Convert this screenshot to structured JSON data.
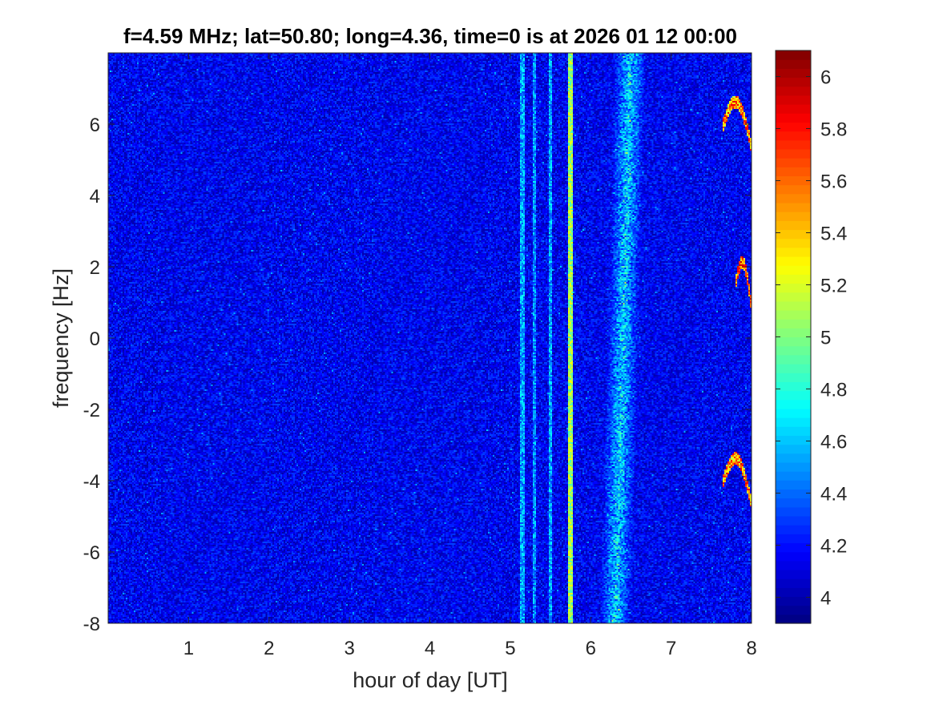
{
  "chart_data": {
    "type": "heatmap",
    "title": "f=4.59 MHz;  lat=50.80; long=4.36, time=0 is at 2026 01 12 00:00",
    "xlabel": "hour of day [UT]",
    "ylabel": "frequency [Hz]",
    "xlim": [
      0,
      8
    ],
    "ylim": [
      -8,
      8
    ],
    "xticks": [
      1,
      2,
      3,
      4,
      5,
      6,
      7,
      8
    ],
    "xtick_labels": [
      "1",
      "2",
      "3",
      "4",
      "5",
      "6",
      "7",
      "8"
    ],
    "yticks": [
      -8,
      -6,
      -4,
      -2,
      0,
      2,
      4,
      6
    ],
    "ytick_labels": [
      "-8",
      "-6",
      "-4",
      "-2",
      "0",
      "2",
      "4",
      "6"
    ],
    "colorbar": {
      "colormap": "jet",
      "clim": [
        3.9,
        6.1
      ],
      "ticks": [
        4,
        4.2,
        4.4,
        4.6,
        4.8,
        5,
        5.2,
        5.4,
        5.6,
        5.8,
        6
      ],
      "tick_labels": [
        "4",
        "4.2",
        "4.4",
        "4.6",
        "4.8",
        "5",
        "5.2",
        "5.4",
        "5.6",
        "5.8",
        "6"
      ]
    },
    "background_level": 4.15,
    "features": {
      "vertical_lines": [
        {
          "hour": 5.15,
          "level": 4.55
        },
        {
          "hour": 5.3,
          "level": 4.5
        },
        {
          "hour": 5.5,
          "level": 4.55
        },
        {
          "hour": 5.75,
          "level": 5.1
        }
      ],
      "wide_band": {
        "hour_start": 6.2,
        "hour_end": 6.6,
        "level": 4.7
      },
      "echo_traces": [
        {
          "hour_start": 7.65,
          "hour_end": 8.0,
          "freq_center": 6.0,
          "level": 5.9
        },
        {
          "hour_start": 7.8,
          "hour_end": 8.0,
          "freq_center": 1.5,
          "level": 6.0
        },
        {
          "hour_start": 7.65,
          "hour_end": 8.0,
          "freq_center": -4.0,
          "level": 5.9
        }
      ]
    }
  }
}
